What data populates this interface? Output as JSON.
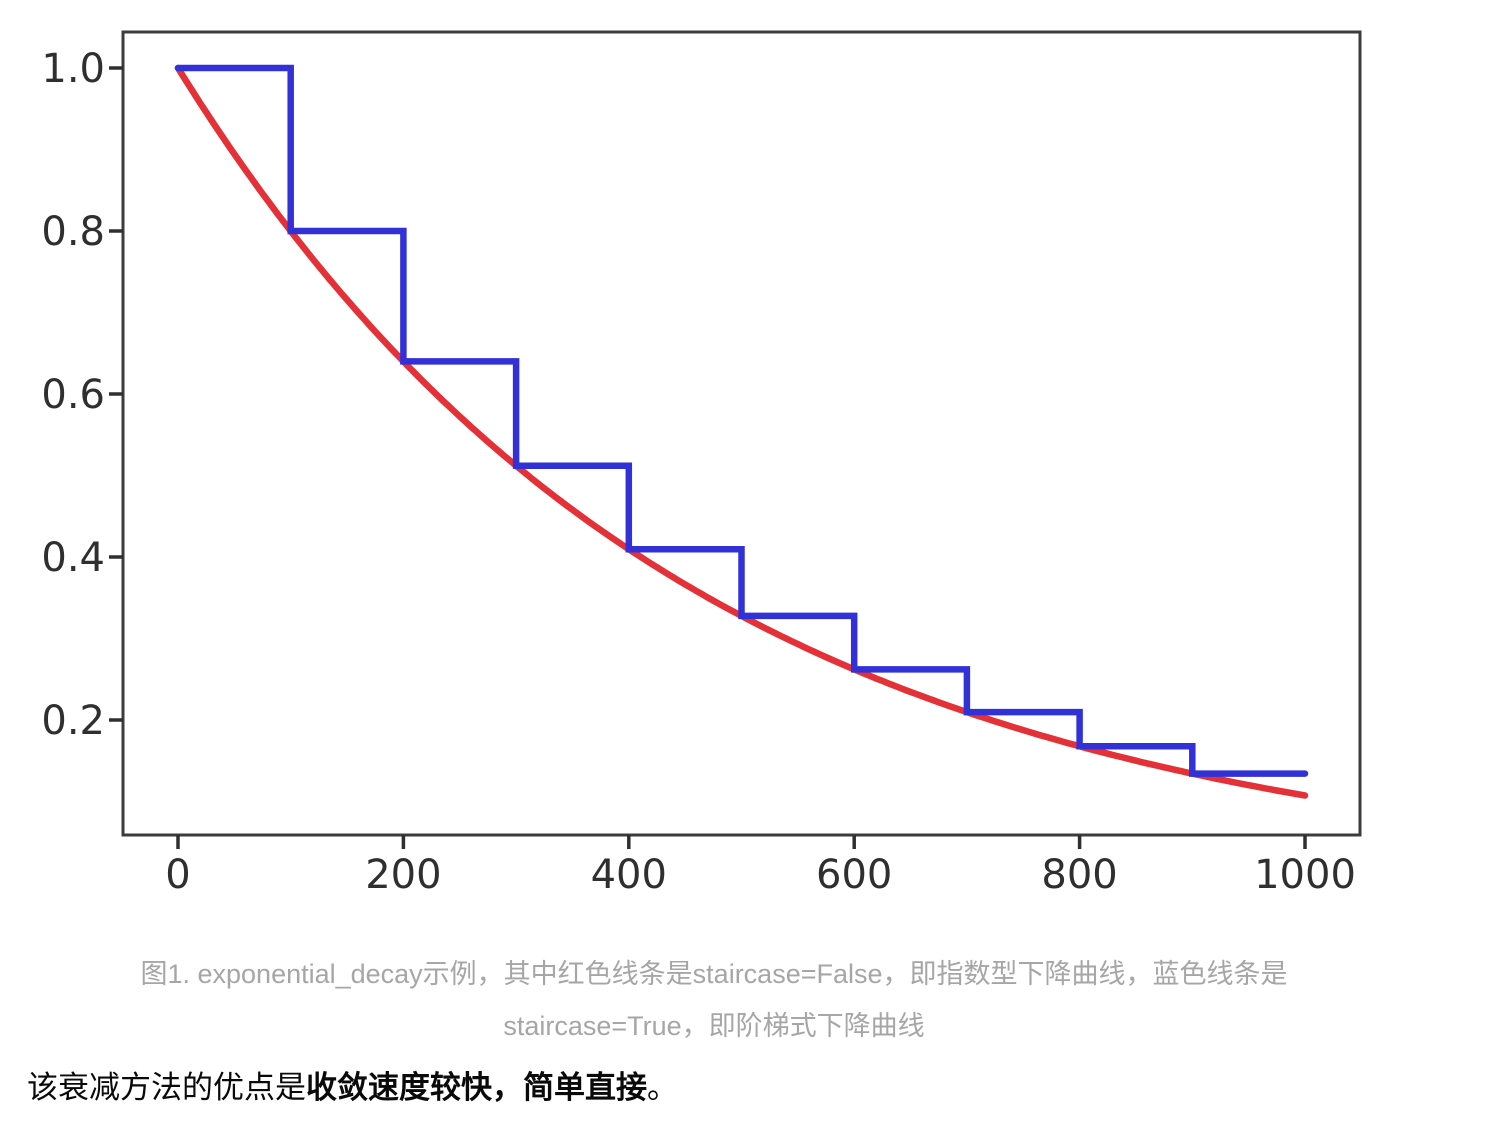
{
  "chart_data": {
    "type": "line",
    "title": "",
    "xlabel": "",
    "ylabel": "",
    "xlim": [
      -50,
      1050
    ],
    "ylim": [
      0.055,
      1.045
    ],
    "grid": false,
    "legend": "none",
    "x_ticks": [
      0,
      200,
      400,
      600,
      800,
      1000
    ],
    "x_tick_labels": [
      "0",
      "200",
      "400",
      "600",
      "800",
      "1000"
    ],
    "y_ticks": [
      1.0,
      0.8,
      0.6,
      0.4,
      0.2
    ],
    "y_tick_labels": [
      "1.0",
      "0.8",
      "0.6",
      "0.4",
      "0.2"
    ],
    "frame_color": "#3c3c3c",
    "tick_color": "#2f2f2f",
    "series": [
      {
        "name": "staircase=False (smooth exponential decay)",
        "style": "smooth",
        "color": "#e43138",
        "decay_rate": 0.8,
        "decay_steps": 100,
        "x_start": 0,
        "x_end": 1000,
        "sample_points": {
          "x": [
            0,
            100,
            200,
            300,
            400,
            500,
            600,
            700,
            800,
            900,
            1000
          ],
          "y": [
            1.0,
            0.8,
            0.64,
            0.512,
            0.4096,
            0.32768,
            0.262144,
            0.2097152,
            0.16777216,
            0.134217728,
            0.1073741824
          ]
        }
      },
      {
        "name": "staircase=True (step decay)",
        "style": "step",
        "color": "#3231d8",
        "step_width": 100,
        "values": [
          1.0,
          0.8,
          0.64,
          0.512,
          0.4096,
          0.32768,
          0.262144,
          0.2097152,
          0.16777216,
          0.134217728
        ]
      }
    ]
  },
  "caption": {
    "line1": "图1. exponential_decay示例，其中红色线条是staircase=False，即指数型下降曲线，蓝色线条是",
    "line2": "staircase=True，即阶梯式下降曲线"
  },
  "paragraph": {
    "prefix": "该衰减方法的优点是",
    "bold": "收敛速度较快，简单直接",
    "suffix": "。"
  }
}
